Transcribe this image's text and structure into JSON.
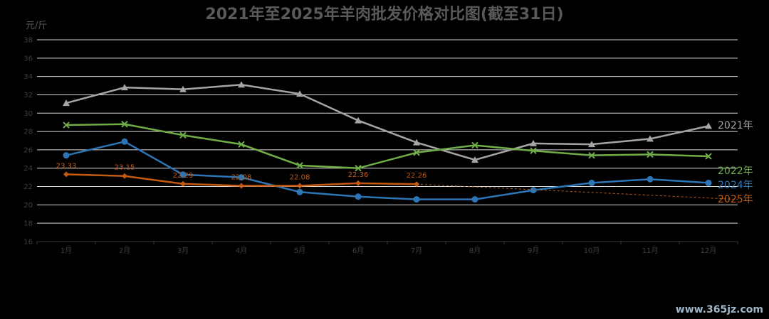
{
  "chart_data": {
    "type": "line",
    "title": "2021年至2025年羊肉批发价格对比图(截至31日)",
    "ylabel": "元/斤",
    "ylim": [
      16,
      38
    ],
    "yticks": [
      "16",
      "18",
      "20",
      "22",
      "24",
      "26",
      "28",
      "30",
      "32",
      "34",
      "36",
      "38"
    ],
    "categories": [
      "1月",
      "2月",
      "3月",
      "4月",
      "5月",
      "6月",
      "7月",
      "8月",
      "9月",
      "10月",
      "11月",
      "12月"
    ],
    "grid": true,
    "legend_position": "right",
    "series": [
      {
        "name": "2021年",
        "color": "#a5a5a5",
        "marker": "triangle",
        "values": [
          31.1,
          32.8,
          32.6,
          33.1,
          32.1,
          29.2,
          26.8,
          24.9,
          26.7,
          26.6,
          27.2,
          28.6
        ]
      },
      {
        "name": "2022年",
        "color": "#70ad47",
        "marker": "x",
        "values": [
          28.7,
          28.8,
          27.6,
          26.6,
          24.3,
          24.0,
          25.7,
          26.5,
          25.9,
          25.4,
          25.5,
          25.3
        ]
      },
      {
        "name": "2024年",
        "color": "#2e75b6",
        "marker": "circle",
        "values": [
          25.4,
          26.9,
          23.3,
          23.0,
          21.4,
          20.9,
          20.6,
          20.6,
          21.6,
          22.4,
          22.8,
          22.4
        ]
      },
      {
        "name": "2025年",
        "color": "#c55a11",
        "marker": "diamond",
        "values": [
          23.33,
          23.15,
          22.29,
          22.08,
          22.08,
          22.36,
          22.26,
          null,
          null,
          null,
          null,
          null
        ],
        "data_labels": [
          "23.33",
          "23.15",
          "22.29",
          "22.08",
          "22.08",
          "22.36",
          "22.26"
        ],
        "trend_end": 20.6
      }
    ]
  },
  "watermark": "www.365jz.com"
}
